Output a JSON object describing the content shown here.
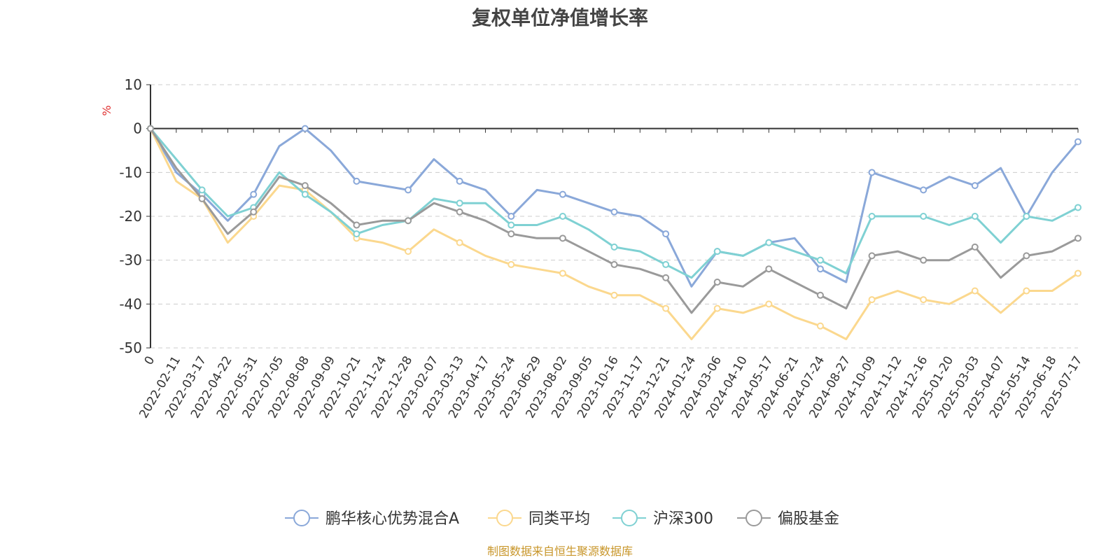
{
  "chart_data": {
    "type": "line",
    "title": "复权单位净值增长率",
    "unit_label": "%",
    "source": "制图数据来自恒生聚源数据库",
    "ylim": [
      -50,
      10
    ],
    "yticks": [
      10,
      0,
      -10,
      -20,
      -30,
      -40,
      -50
    ],
    "grid": true,
    "legend_position": "bottom",
    "x": [
      "0",
      "2022-02-11",
      "2022-03-17",
      "2022-04-22",
      "2022-05-31",
      "2022-07-05",
      "2022-08-08",
      "2022-09-09",
      "2022-10-21",
      "2022-11-24",
      "2022-12-28",
      "2023-02-07",
      "2023-03-13",
      "2023-04-17",
      "2023-05-24",
      "2023-06-29",
      "2023-08-02",
      "2023-09-05",
      "2023-10-16",
      "2023-11-17",
      "2023-12-21",
      "2024-01-24",
      "2024-03-06",
      "2024-04-10",
      "2024-05-17",
      "2024-06-21",
      "2024-07-24",
      "2024-08-27",
      "2024-10-09",
      "2024-11-12",
      "2024-12-16",
      "2025-01-20",
      "2025-03-03",
      "2025-04-07",
      "2025-05-14",
      "2025-06-18",
      "2025-07-17"
    ],
    "series": [
      {
        "name": "鹏华核心优势混合A",
        "color": "#8aa8d9",
        "values": [
          0,
          -10,
          -15,
          -21,
          -15,
          -4,
          0,
          -5,
          -12,
          -13,
          -14,
          -7,
          -12,
          -14,
          -20,
          -14,
          -15,
          -17,
          -19,
          -20,
          -24,
          -36,
          -28,
          -29,
          -26,
          -25,
          -32,
          -35,
          -10,
          -12,
          -14,
          -11,
          -13,
          -9,
          -20,
          -10,
          -3
        ]
      },
      {
        "name": "同类平均",
        "color": "#fbd88e",
        "values": [
          0,
          -12,
          -16,
          -26,
          -20,
          -13,
          -14,
          -19,
          -25,
          -26,
          -28,
          -23,
          -26,
          -29,
          -31,
          -32,
          -33,
          -36,
          -38,
          -38,
          -41,
          -48,
          -41,
          -42,
          -40,
          -43,
          -45,
          -48,
          -39,
          -37,
          -39,
          -40,
          -37,
          -42,
          -37,
          -37,
          -33
        ]
      },
      {
        "name": "沪深300",
        "color": "#7fd1d3",
        "values": [
          0,
          -7,
          -14,
          -20,
          -18,
          -10,
          -15,
          -19,
          -24,
          -22,
          -21,
          -16,
          -17,
          -17,
          -22,
          -22,
          -20,
          -23,
          -27,
          -28,
          -31,
          -34,
          -28,
          -29,
          -26,
          -28,
          -30,
          -33,
          -20,
          -20,
          -20,
          -22,
          -20,
          -26,
          -20,
          -21,
          -18
        ]
      },
      {
        "name": "偏股基金",
        "color": "#9a9a9a",
        "values": [
          0,
          -9,
          -16,
          -24,
          -19,
          -11,
          -13,
          -17,
          -22,
          -21,
          -21,
          -17,
          -19,
          -21,
          -24,
          -25,
          -25,
          -28,
          -31,
          -32,
          -34,
          -42,
          -35,
          -36,
          -32,
          -35,
          -38,
          -41,
          -29,
          -28,
          -30,
          -30,
          -27,
          -34,
          -29,
          -28,
          -25
        ]
      }
    ]
  }
}
